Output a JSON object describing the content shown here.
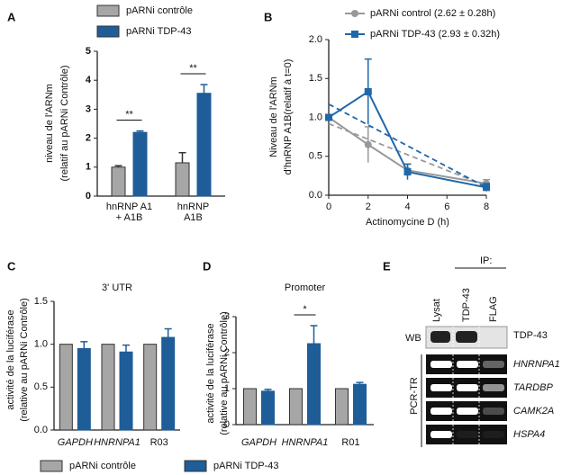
{
  "chart_data": [
    {
      "type": "bar",
      "panel": "A",
      "ylabel": [
        "niveau de l'ARNm",
        "(relatif au pARNi Contrôle)"
      ],
      "categories": [
        "hnRNP  A1 + A1B",
        "hnRNP  A1B"
      ],
      "series": [
        {
          "name": "pARNi contrôle",
          "color": "#a6a6a6",
          "values": [
            1.0,
            1.15
          ],
          "errors": [
            0.05,
            0.35
          ]
        },
        {
          "name": "pARNi TDP-43",
          "color": "#1f5d99",
          "values": [
            2.2,
            3.55
          ],
          "errors": [
            0.05,
            0.3
          ]
        }
      ],
      "annotations": [
        {
          "text": "**",
          "category": 0
        },
        {
          "text": "**",
          "category": 1
        }
      ],
      "ylim": [
        0,
        5
      ],
      "yticks": [
        0,
        1,
        2,
        3,
        4,
        5
      ]
    },
    {
      "type": "line",
      "panel": "B",
      "xlabel": "Actinomycine D (h)",
      "ylabel": [
        "Niveau de l'ARNm",
        "d'hnRNP A1B(relatif à t=0)"
      ],
      "x": [
        0,
        2,
        4,
        8
      ],
      "series": [
        {
          "name": "pARNi control (2.62 ± 0.28h)",
          "color": "#999999",
          "marker": "circle",
          "values": [
            1.0,
            0.65,
            0.32,
            0.15
          ],
          "errors": [
            0,
            0.23,
            0.08,
            0.05
          ],
          "fit": {
            "x": [
              0,
              8
            ],
            "values": [
              0.92,
              0.12
            ]
          }
        },
        {
          "name": "pARNi TDP-43 (2.93 ± 0.32h)",
          "color": "#1f67a8",
          "marker": "square",
          "values": [
            1.0,
            1.33,
            0.3,
            0.1
          ],
          "errors": [
            0,
            0.42,
            0.1,
            0.05
          ],
          "fit": {
            "x": [
              0,
              8
            ],
            "values": [
              1.17,
              0.1
            ]
          }
        }
      ],
      "xlim": [
        0,
        8
      ],
      "xticks": [
        0,
        2,
        4,
        6,
        8
      ],
      "ylim": [
        0,
        2
      ],
      "yticks": [
        {
          "value": 0,
          "label": "0.0"
        },
        0.5,
        {
          "value": 1,
          "label": "1.0"
        },
        1.5,
        {
          "value": 2,
          "label": "2.0"
        }
      ]
    },
    {
      "type": "bar",
      "panel": "C",
      "title": "3' UTR",
      "ylabel": [
        "activité de la luciférase",
        "(relative au pARNi Contrôle)"
      ],
      "categories": [
        "GAPDH",
        "HNRNPA1",
        "R03"
      ],
      "category_style": [
        "italic",
        "italic",
        "normal"
      ],
      "series": [
        {
          "name": "pARNi contrôle",
          "color": "#a6a6a6",
          "values": [
            1.0,
            1.0,
            1.0
          ],
          "errors": [
            0,
            0,
            0
          ]
        },
        {
          "name": "pARNi TDP-43",
          "color": "#1f5d99",
          "values": [
            0.95,
            0.91,
            1.08
          ],
          "errors": [
            0.08,
            0.08,
            0.1
          ]
        }
      ],
      "ylim": [
        0,
        1.5
      ],
      "yticks": [
        {
          "value": 0,
          "label": "0.0"
        },
        0.5,
        {
          "value": 1,
          "label": "1.0"
        },
        1.5
      ]
    },
    {
      "type": "bar",
      "panel": "D",
      "title": "Promoter",
      "ylabel": [
        "activité de la luciférase",
        "(relative au pARNi Contrôle)"
      ],
      "categories": [
        "GAPDH",
        "HNRNPA1",
        "R01"
      ],
      "category_style": [
        "italic",
        "italic",
        "normal"
      ],
      "series": [
        {
          "color": "#a6a6a6",
          "values": [
            1.0,
            1.0,
            1.0
          ],
          "errors": [
            0,
            0,
            0
          ]
        },
        {
          "color": "#1f5d99",
          "values": [
            0.93,
            2.25,
            1.12
          ],
          "errors": [
            0.05,
            0.5,
            0.05
          ]
        }
      ],
      "annotations": [
        {
          "text": "*",
          "category": 1
        }
      ],
      "ylim": [
        0,
        3
      ],
      "yticks": [
        0,
        1,
        2,
        3
      ]
    }
  ],
  "gel": {
    "panel": "E",
    "ip_label": "IP:",
    "lanes": [
      "Lysat",
      "TDP-43",
      "FLAG"
    ],
    "wb_label": "WB",
    "wb_target": "TDP-43",
    "pcr_label": "PCR-TR",
    "genes": [
      "HNRNPA1",
      "TARDBP",
      "CAMK2A",
      "HSPA4"
    ]
  }
}
